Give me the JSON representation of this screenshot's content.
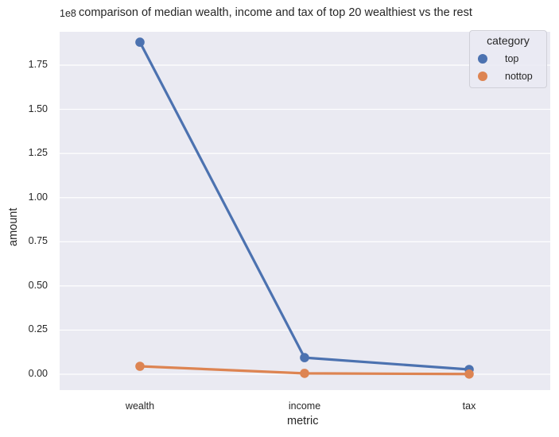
{
  "chart_data": {
    "type": "line",
    "title": "comparison of median wealth, income and tax of top 20 wealthiest vs the rest",
    "xlabel": "metric",
    "ylabel": "amount",
    "y_offset_label": "1e8",
    "categories": [
      "wealth",
      "income",
      "tax"
    ],
    "series": [
      {
        "name": "top",
        "color": "#4c72b0",
        "values": [
          188000000,
          9400000,
          2700000
        ]
      },
      {
        "name": "nottop",
        "color": "#dd8452",
        "values": [
          4500000,
          500000,
          100000
        ]
      }
    ],
    "yticks": [
      0.0,
      0.25,
      0.5,
      0.75,
      1.0,
      1.25,
      1.5,
      1.75
    ],
    "ytick_labels": [
      "0.00",
      "0.25",
      "0.50",
      "0.75",
      "1.00",
      "1.25",
      "1.50",
      "1.75"
    ],
    "ylim": [
      -9000000,
      196000000
    ],
    "grid": true,
    "legend": {
      "title": "category",
      "position": "upper right",
      "entries": [
        "top",
        "nottop"
      ]
    },
    "background": "#eaeaf2"
  }
}
